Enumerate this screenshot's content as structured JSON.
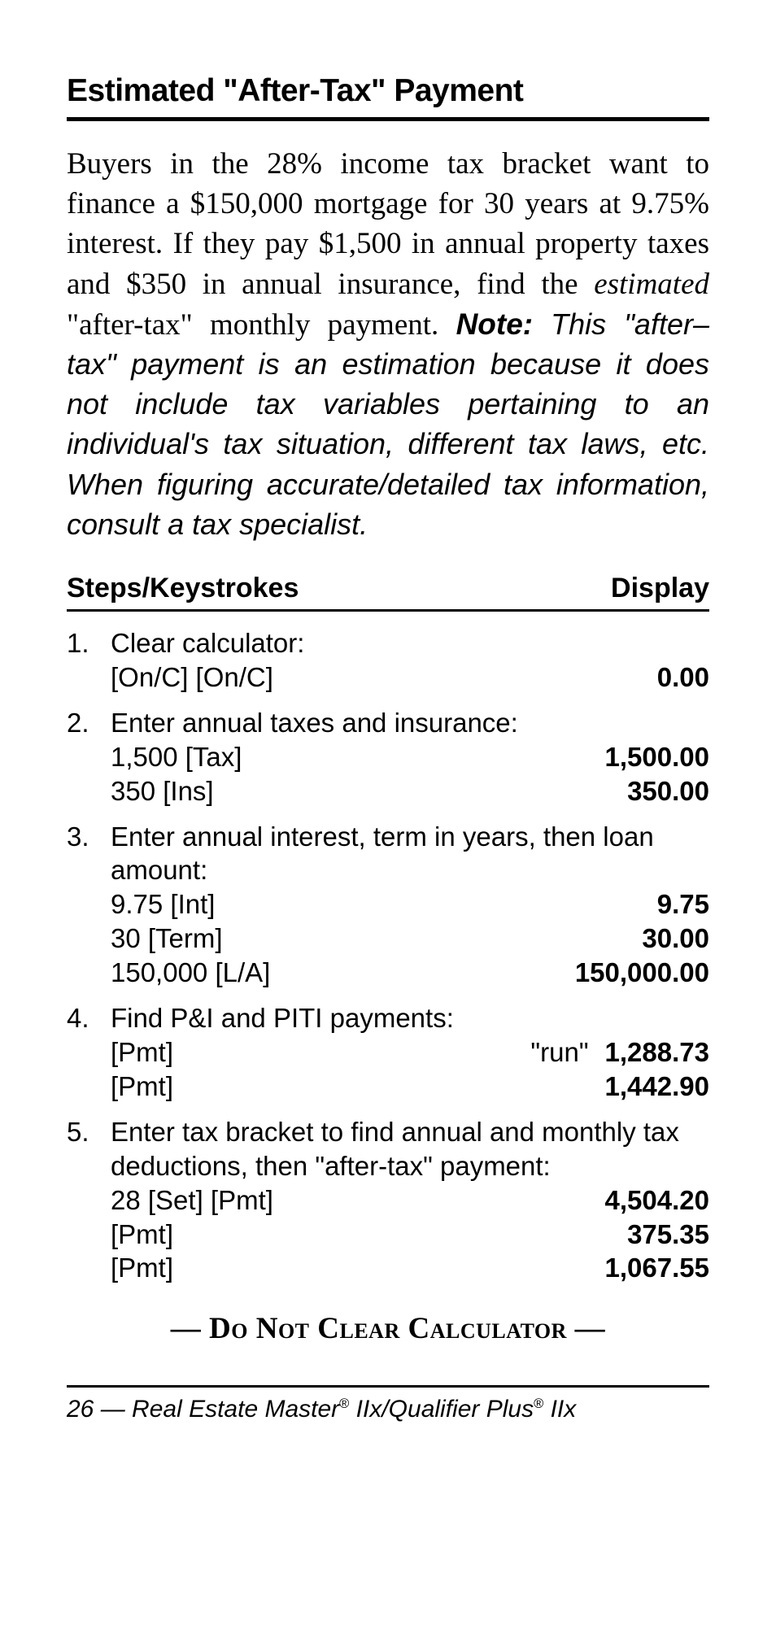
{
  "title": "Estimated \"After-Tax\" Payment",
  "intro": {
    "part1": "Buyers in the 28% income tax bracket want to finance a $150,000 mortgage for 30 years at 9.75% interest. If they pay $1,500 in annual property taxes and $350 in annual insurance, find the ",
    "emph": "estimated",
    "part2": " \"after-tax\" monthly payment. ",
    "note_label": "Note:",
    "note_body": " This \"after–tax\" payment is an estimation because it does not include tax variables pertaining to an individual's tax situation, different tax laws, etc. When figuring accurate/detailed tax information, consult a tax specialist."
  },
  "table_header": {
    "left": "Steps/Keystrokes",
    "right": "Display"
  },
  "steps": [
    {
      "n": "1.",
      "label": "Clear calculator:",
      "rows": [
        {
          "key": "[On/C] [On/C]",
          "val": "0.00"
        }
      ]
    },
    {
      "n": "2.",
      "label": "Enter annual taxes and insurance:",
      "rows": [
        {
          "key": "1,500 [Tax]",
          "val": "1,500.00"
        },
        {
          "key": "350 [Ins]",
          "val": "350.00"
        }
      ]
    },
    {
      "n": "3.",
      "label": "Enter annual interest, term in years, then loan amount:",
      "rows": [
        {
          "key": "9.75 [Int]",
          "val": "9.75"
        },
        {
          "key": "30 [Term]",
          "val": "30.00"
        },
        {
          "key": "150,000 [L/A]",
          "val": "150,000.00"
        }
      ]
    },
    {
      "n": "4.",
      "label": "Find P&I and PITI payments:",
      "rows": [
        {
          "key": "[Pmt]",
          "mid": "\"run\"",
          "val": "1,288.73"
        },
        {
          "key": "[Pmt]",
          "val": "1,442.90"
        }
      ]
    },
    {
      "n": "5.",
      "label": "Enter tax bracket to find annual and monthly tax deductions, then \"after-tax\" payment:",
      "rows": [
        {
          "key": "28 [Set] [Pmt]",
          "val": "4,504.20"
        },
        {
          "key": "[Pmt]",
          "val": "375.35"
        },
        {
          "key": "[Pmt]",
          "val": "1,067.55"
        }
      ]
    }
  ],
  "warning": "— Do Not Clear Calculator —",
  "footer": {
    "page": "26",
    "sep": " — ",
    "product1": "Real Estate Master",
    "reg": "®",
    "suffix1": " IIx/Qualifier Plus",
    "suffix2": " IIx"
  }
}
